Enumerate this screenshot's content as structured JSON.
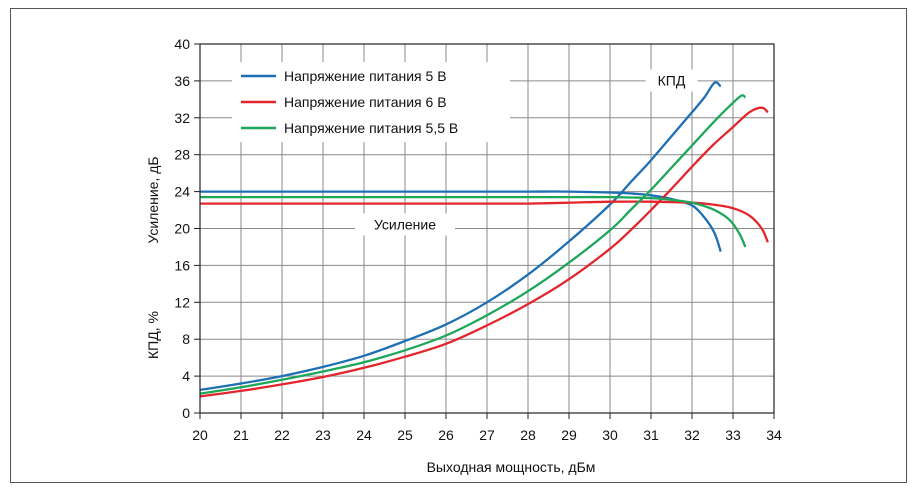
{
  "chart_data": {
    "type": "line",
    "xlabel": "Выходная мощность, дБм",
    "ylabel_top": "Усиление, дБ",
    "ylabel_bottom": "КПД, %",
    "xlim": [
      20,
      34
    ],
    "ylim": [
      0,
      40
    ],
    "x_ticks": [
      "20",
      "21",
      "22",
      "23",
      "24",
      "25",
      "26",
      "27",
      "28",
      "29",
      "30",
      "31",
      "32",
      "33",
      "34"
    ],
    "y_ticks": [
      "0",
      "4",
      "8",
      "12",
      "16",
      "20",
      "24",
      "28",
      "32",
      "36",
      "40"
    ],
    "grid": true,
    "legend_position": "top-left",
    "annotations": [
      {
        "text": "КПД",
        "x": 31.5,
        "y": 35.6
      },
      {
        "text": "Усиление",
        "x": 25,
        "y": 20
      }
    ],
    "series": [
      {
        "name": "Напряжение питания 5 В",
        "color": "#1f6fb5",
        "gain": [
          [
            20,
            24
          ],
          [
            21,
            24
          ],
          [
            22,
            24
          ],
          [
            23,
            24
          ],
          [
            24,
            24
          ],
          [
            25,
            24
          ],
          [
            26,
            24
          ],
          [
            27,
            24
          ],
          [
            28,
            24
          ],
          [
            29,
            24
          ],
          [
            30,
            23.9
          ],
          [
            30.5,
            23.8
          ],
          [
            31,
            23.6
          ],
          [
            31.5,
            23.2
          ],
          [
            32,
            22.5
          ],
          [
            32.3,
            21.2
          ],
          [
            32.55,
            19.5
          ],
          [
            32.7,
            17.5
          ]
        ],
        "efficiency": [
          [
            20,
            2.5
          ],
          [
            21,
            3.2
          ],
          [
            22,
            4
          ],
          [
            23,
            5
          ],
          [
            24,
            6.2
          ],
          [
            25,
            7.8
          ],
          [
            26,
            9.6
          ],
          [
            27,
            12
          ],
          [
            28,
            15
          ],
          [
            29,
            18.6
          ],
          [
            30,
            22.6
          ],
          [
            30.5,
            25
          ],
          [
            31,
            27.4
          ],
          [
            31.5,
            30
          ],
          [
            32,
            32.6
          ],
          [
            32.3,
            34.2
          ],
          [
            32.55,
            35.8
          ],
          [
            32.7,
            35.4
          ]
        ]
      },
      {
        "name": "Напряжение питания 6 В",
        "color": "#e3262e",
        "gain": [
          [
            20,
            22.7
          ],
          [
            21,
            22.7
          ],
          [
            22,
            22.7
          ],
          [
            23,
            22.7
          ],
          [
            24,
            22.7
          ],
          [
            25,
            22.7
          ],
          [
            26,
            22.7
          ],
          [
            27,
            22.7
          ],
          [
            28,
            22.7
          ],
          [
            29,
            22.8
          ],
          [
            30,
            22.9
          ],
          [
            31,
            22.9
          ],
          [
            32,
            22.8
          ],
          [
            32.5,
            22.6
          ],
          [
            33,
            22.2
          ],
          [
            33.4,
            21.4
          ],
          [
            33.7,
            20
          ],
          [
            33.85,
            18.5
          ]
        ],
        "efficiency": [
          [
            20,
            1.8
          ],
          [
            21,
            2.4
          ],
          [
            22,
            3.1
          ],
          [
            23,
            3.9
          ],
          [
            24,
            4.9
          ],
          [
            25,
            6.1
          ],
          [
            26,
            7.5
          ],
          [
            27,
            9.5
          ],
          [
            28,
            11.8
          ],
          [
            29,
            14.5
          ],
          [
            30,
            17.8
          ],
          [
            30.5,
            19.8
          ],
          [
            31,
            22
          ],
          [
            31.5,
            24.3
          ],
          [
            32,
            26.7
          ],
          [
            32.5,
            29
          ],
          [
            33,
            31
          ],
          [
            33.4,
            32.6
          ],
          [
            33.7,
            33.1
          ],
          [
            33.85,
            32.6
          ]
        ]
      },
      {
        "name": "Напряжение питания 5,5 В",
        "color": "#1ea659",
        "gain": [
          [
            20,
            23.4
          ],
          [
            21,
            23.4
          ],
          [
            22,
            23.4
          ],
          [
            23,
            23.4
          ],
          [
            24,
            23.4
          ],
          [
            25,
            23.4
          ],
          [
            26,
            23.4
          ],
          [
            27,
            23.4
          ],
          [
            28,
            23.4
          ],
          [
            29,
            23.4
          ],
          [
            30,
            23.4
          ],
          [
            31,
            23.3
          ],
          [
            31.5,
            23.1
          ],
          [
            32,
            22.8
          ],
          [
            32.5,
            22.1
          ],
          [
            32.9,
            21
          ],
          [
            33.15,
            19.5
          ],
          [
            33.3,
            18
          ]
        ],
        "efficiency": [
          [
            20,
            2.1
          ],
          [
            21,
            2.8
          ],
          [
            22,
            3.6
          ],
          [
            23,
            4.5
          ],
          [
            24,
            5.5
          ],
          [
            25,
            6.8
          ],
          [
            26,
            8.4
          ],
          [
            27,
            10.6
          ],
          [
            28,
            13.2
          ],
          [
            29,
            16.3
          ],
          [
            30,
            19.8
          ],
          [
            30.5,
            22
          ],
          [
            31,
            24.2
          ],
          [
            31.5,
            26.6
          ],
          [
            32,
            29
          ],
          [
            32.5,
            31.4
          ],
          [
            32.9,
            33.2
          ],
          [
            33.2,
            34.4
          ],
          [
            33.3,
            34.2
          ]
        ]
      }
    ]
  }
}
